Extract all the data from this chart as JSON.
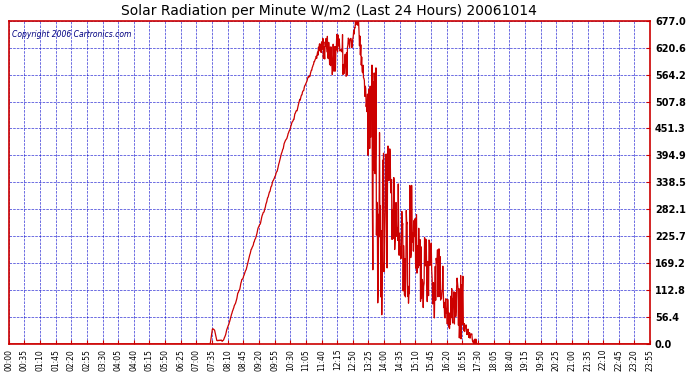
{
  "title": "Solar Radiation per Minute W/m2 (Last 24 Hours) 20061014",
  "copyright": "Copyright 2006 Cartronics.com",
  "bg_color": "#FFFFFF",
  "plot_bg_color": "#FFFFFF",
  "line_color": "#CC0000",
  "grid_color": "#0000CC",
  "axis_color": "#CC0000",
  "text_color": "#000000",
  "title_color": "#000000",
  "ylim": [
    0.0,
    677.0
  ],
  "yticks": [
    0.0,
    56.4,
    112.8,
    169.2,
    225.7,
    282.1,
    338.5,
    394.9,
    451.3,
    507.8,
    564.2,
    620.6,
    677.0
  ],
  "xtick_labels": [
    "00:00",
    "00:35",
    "01:10",
    "01:45",
    "02:20",
    "02:55",
    "03:30",
    "04:05",
    "04:40",
    "05:15",
    "05:50",
    "06:25",
    "07:00",
    "07:35",
    "08:10",
    "08:45",
    "09:20",
    "09:55",
    "10:30",
    "11:05",
    "11:40",
    "12:15",
    "12:50",
    "13:25",
    "14:00",
    "14:35",
    "15:10",
    "15:45",
    "16:20",
    "16:55",
    "17:30",
    "18:05",
    "18:40",
    "19:15",
    "19:50",
    "20:25",
    "21:00",
    "21:35",
    "22:10",
    "22:45",
    "23:20",
    "23:55"
  ]
}
